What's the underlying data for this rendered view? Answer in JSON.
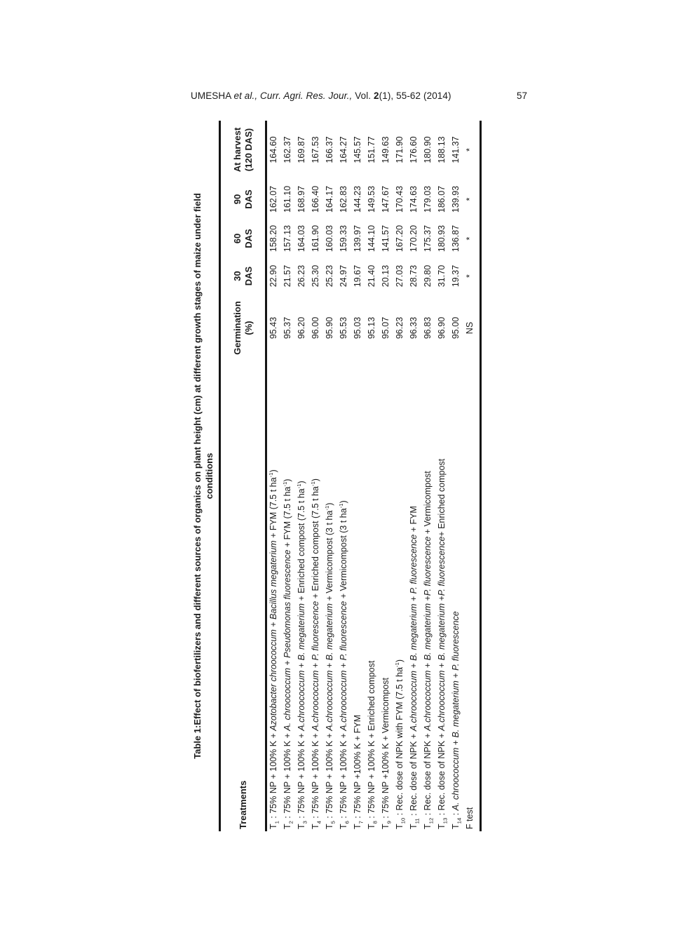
{
  "page": {
    "header": {
      "citation_segments": [
        {
          "t": "UMESHA "
        },
        {
          "t": "et al.,",
          "s": "i"
        },
        {
          "t": " "
        },
        {
          "t": "Curr. Agri. Res. Jour.,",
          "s": "i"
        },
        {
          "t": "  Vol. "
        },
        {
          "t": "2",
          "s": "b"
        },
        {
          "t": "(1), 55-62 (2014)"
        }
      ],
      "page_number": "57"
    }
  },
  "table": {
    "title_lines": [
      "Table 1:Effect of biofertilizers and different sources of organics on plant height (cm) at different growth stages of maize under field",
      "conditions"
    ],
    "columns": [
      {
        "key": "treatments",
        "lines": [
          "Treatments"
        ]
      },
      {
        "key": "germination",
        "lines": [
          "Germination",
          "(%)"
        ]
      },
      {
        "key": "30-das",
        "lines": [
          "30",
          "DAS"
        ]
      },
      {
        "key": "60-das",
        "lines": [
          "60",
          "DAS"
        ]
      },
      {
        "key": "90-das",
        "lines": [
          "90",
          "DAS"
        ]
      },
      {
        "key": "at-harvest",
        "lines": [
          "At harvest",
          "(120 DAS)"
        ]
      }
    ],
    "rows": [
      {
        "key": "t1",
        "label": [
          {
            "t": "T"
          },
          {
            "t": "1",
            "s": "sub"
          },
          {
            "t": " : 75% NP + 100% K +  "
          },
          {
            "t": "Azotobacter chroococcum",
            "s": "i"
          },
          {
            "t": " + "
          },
          {
            "t": "Bacillus megaterium",
            "s": "i"
          },
          {
            "t": " +   FYM  (7.5 t ha"
          },
          {
            "t": "-1",
            "s": "sup"
          },
          {
            "t": ")"
          }
        ],
        "values": [
          "95.43",
          "22.90",
          "158.20",
          "162.07",
          "164.60"
        ]
      },
      {
        "key": "t2",
        "label": [
          {
            "t": "T"
          },
          {
            "t": "2",
            "s": "sub"
          },
          {
            "t": " : 75% NP + 100% K + "
          },
          {
            "t": "A. chroococcum",
            "s": "i"
          },
          {
            "t": " + "
          },
          {
            "t": "Pseudomonas  fluorescence",
            "s": "i"
          },
          {
            "t": " +  FYM (7.5 t ha"
          },
          {
            "t": "-1",
            "s": "sup"
          },
          {
            "t": ")"
          }
        ],
        "values": [
          "95.37",
          "21.57",
          "157.13",
          "161.10",
          "162.37"
        ]
      },
      {
        "key": "t3",
        "label": [
          {
            "t": "T"
          },
          {
            "t": "3",
            "s": "sub"
          },
          {
            "t": " : 75% NP + 100% K + "
          },
          {
            "t": "A.chroococcum",
            "s": "i"
          },
          {
            "t": " + "
          },
          {
            "t": "B. megaterium",
            "s": "i"
          },
          {
            "t": " + Enriched compost (7.5 t ha"
          },
          {
            "t": "-1",
            "s": "sup"
          },
          {
            "t": ")"
          }
        ],
        "values": [
          "96.20",
          "26.23",
          "164.03",
          "168.97",
          "169.87"
        ]
      },
      {
        "key": "t4",
        "label": [
          {
            "t": "T"
          },
          {
            "t": "4",
            "s": "sub"
          },
          {
            "t": " : 75% NP + 100% K +  "
          },
          {
            "t": "A.chroococcum",
            "s": "i"
          },
          {
            "t": " + "
          },
          {
            "t": "P. fluorescence",
            "s": "i"
          },
          {
            "t": " + Enriched compost (7.5 t ha"
          },
          {
            "t": "-1",
            "s": "sup"
          },
          {
            "t": ")"
          }
        ],
        "values": [
          "96.00",
          "25.30",
          "161.90",
          "166.40",
          "167.53"
        ]
      },
      {
        "key": "t5",
        "label": [
          {
            "t": "T"
          },
          {
            "t": "5",
            "s": "sub"
          },
          {
            "t": " : 75% NP + 100% K + "
          },
          {
            "t": "A.chroococcum",
            "s": "i"
          },
          {
            "t": " + "
          },
          {
            "t": "B. megaterium",
            "s": "i"
          },
          {
            "t": " + Vermicompost (3 t ha"
          },
          {
            "t": "-1",
            "s": "sup"
          },
          {
            "t": ")"
          }
        ],
        "values": [
          "95.90",
          "25.23",
          "160.03",
          "164.17",
          "166.37"
        ]
      },
      {
        "key": "t6",
        "label": [
          {
            "t": "T"
          },
          {
            "t": "6",
            "s": "sub"
          },
          {
            "t": " : 75% NP + 100% K + "
          },
          {
            "t": "A.chroococcum",
            "s": "i"
          },
          {
            "t": " + "
          },
          {
            "t": "P. fluorescence",
            "s": "i"
          },
          {
            "t": " + Vermicompost (3 t ha"
          },
          {
            "t": "-1",
            "s": "sup"
          },
          {
            "t": ")"
          }
        ],
        "values": [
          "95.53",
          "24.97",
          "159.33",
          "162.83",
          "164.27"
        ]
      },
      {
        "key": "t7",
        "label": [
          {
            "t": "T"
          },
          {
            "t": "7",
            "s": "sub"
          },
          {
            "t": " : 75% NP +100% K +  FYM"
          }
        ],
        "values": [
          "95.03",
          "19.67",
          "139.97",
          "144.23",
          "145.57"
        ]
      },
      {
        "key": "t8",
        "label": [
          {
            "t": "T"
          },
          {
            "t": "8",
            "s": "sub"
          },
          {
            "t": " : 75% NP + 100% K +  Enriched compost"
          }
        ],
        "values": [
          "95.13",
          "21.40",
          "144.10",
          "149.53",
          "151.77"
        ]
      },
      {
        "key": "t9",
        "label": [
          {
            "t": "T"
          },
          {
            "t": "9",
            "s": "sub"
          },
          {
            "t": " : 75% NP +100% K + Vermicompost"
          }
        ],
        "values": [
          "95.07",
          "20.13",
          "141.57",
          "147.67",
          "149.63"
        ]
      },
      {
        "key": "t10",
        "label": [
          {
            "t": "T"
          },
          {
            "t": "10",
            "s": "sub"
          },
          {
            "t": " : Rec. dose of NPK with FYM (7.5 t ha"
          },
          {
            "t": "-1",
            "s": "sup"
          },
          {
            "t": ")"
          }
        ],
        "values": [
          "96.23",
          "27.03",
          "167.20",
          "170.43",
          "171.90"
        ]
      },
      {
        "key": "t11",
        "label": [
          {
            "t": "T"
          },
          {
            "t": "11",
            "s": "sub"
          },
          {
            "t": " : Rec. dose of NPK + "
          },
          {
            "t": "A.chroococcum",
            "s": "i"
          },
          {
            "t": " + "
          },
          {
            "t": "B. megaterium",
            "s": "i"
          },
          {
            "t": " + "
          },
          {
            "t": "P. fluorescence",
            "s": "i"
          },
          {
            "t": " +   FYM"
          }
        ],
        "values": [
          "96.33",
          "28.73",
          "170.20",
          "174.63",
          "176.60"
        ]
      },
      {
        "key": "t12",
        "label": [
          {
            "t": "T"
          },
          {
            "t": "12",
            "s": "sub"
          },
          {
            "t": " : Rec. dose of NPK  + "
          },
          {
            "t": "A.chroococcum",
            "s": "i"
          },
          {
            "t": " + "
          },
          {
            "t": "B. megaterium",
            "s": "i"
          },
          {
            "t": " +"
          },
          {
            "t": "P. fluorescence",
            "s": "i"
          },
          {
            "t": " + Vermicompost"
          }
        ],
        "values": [
          "96.83",
          "29.80",
          "175.37",
          "179.03",
          "180.90"
        ]
      },
      {
        "key": "t13",
        "label": [
          {
            "t": "T"
          },
          {
            "t": "13",
            "s": "sub"
          },
          {
            "t": " : Rec. dose of NPK  + "
          },
          {
            "t": "A.chroococcum",
            "s": "i"
          },
          {
            "t": " + "
          },
          {
            "t": "B. megaterium",
            "s": "i"
          },
          {
            "t": " +"
          },
          {
            "t": "P. fluorescence",
            "s": "i"
          },
          {
            "t": "+ Enriched compost"
          }
        ],
        "values": [
          "96.90",
          "31.70",
          "180.93",
          "186.07",
          "188.13"
        ]
      },
      {
        "key": "t14",
        "label": [
          {
            "t": "T"
          },
          {
            "t": "14",
            "s": "sub"
          },
          {
            "t": " : "
          },
          {
            "t": "A. chroococcum",
            "s": "i"
          },
          {
            "t": " + "
          },
          {
            "t": "B. megaterium",
            "s": "i"
          },
          {
            "t": " + "
          },
          {
            "t": "P. fluorescence",
            "s": "i"
          }
        ],
        "values": [
          "95.00",
          "19.37",
          "136.87",
          "139.93",
          "141.37"
        ]
      },
      {
        "key": "f-test",
        "label": [
          {
            "t": "F test"
          }
        ],
        "values": [
          "NS",
          "*",
          "*",
          "*",
          "*"
        ]
      }
    ]
  }
}
